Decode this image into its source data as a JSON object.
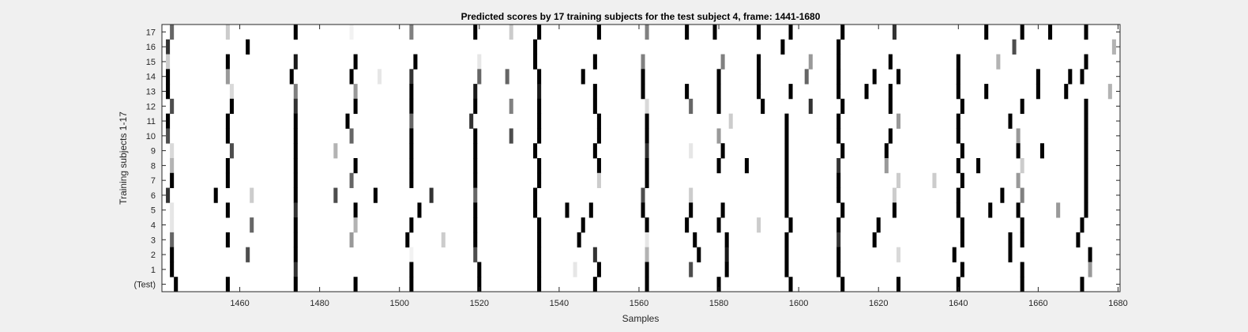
{
  "chart_data": {
    "type": "heatmap",
    "title": "Predicted scores by 17 training subjects for the test subject 4, frame: 1441-1680",
    "xlabel": "Samples",
    "ylabel": "Training subjects 1-17",
    "xlim": [
      1441,
      1680
    ],
    "x_ticks": [
      1460,
      1480,
      1500,
      1520,
      1540,
      1560,
      1580,
      1600,
      1620,
      1640,
      1660,
      1680
    ],
    "y_tick_labels": [
      "17",
      "16",
      "15",
      "14",
      "13",
      "12",
      "11",
      "10",
      "9",
      "8",
      "7",
      "6",
      "5",
      "4",
      "3",
      "2",
      "1",
      "(Test)"
    ],
    "colormap": "gray (white = 0, black = 1)",
    "grid": false,
    "rows": [
      {
        "label": "17",
        "marks": [
          [
            1443,
            0.6
          ],
          [
            1457,
            0.2
          ],
          [
            1474,
            1
          ],
          [
            1488,
            0.05
          ],
          [
            1503,
            0.5
          ],
          [
            1519,
            1
          ],
          [
            1528,
            0.2
          ],
          [
            1535,
            1
          ],
          [
            1550,
            1
          ],
          [
            1562,
            0.5
          ],
          [
            1572,
            1
          ],
          [
            1579,
            1
          ],
          [
            1590,
            1
          ],
          [
            1598,
            1
          ],
          [
            1611,
            1
          ],
          [
            1624,
            0.8
          ],
          [
            1647,
            1
          ],
          [
            1656,
            1
          ],
          [
            1663,
            1
          ],
          [
            1672,
            1
          ]
        ]
      },
      {
        "label": "16",
        "marks": [
          [
            1442,
            0.8
          ],
          [
            1462,
            1
          ],
          [
            1534,
            1
          ],
          [
            1596,
            1
          ],
          [
            1610,
            1
          ],
          [
            1654,
            0.7
          ],
          [
            1679,
            0.3
          ]
        ]
      },
      {
        "label": "15",
        "marks": [
          [
            1442,
            0.2
          ],
          [
            1457,
            1
          ],
          [
            1474,
            0.9
          ],
          [
            1489,
            1
          ],
          [
            1504,
            1
          ],
          [
            1520,
            0.1
          ],
          [
            1534,
            1
          ],
          [
            1549,
            1
          ],
          [
            1561,
            0.5
          ],
          [
            1581,
            0.5
          ],
          [
            1590,
            1
          ],
          [
            1603,
            0.4
          ],
          [
            1610,
            1
          ],
          [
            1623,
            1
          ],
          [
            1640,
            1
          ],
          [
            1650,
            0.3
          ],
          [
            1672,
            1
          ]
        ]
      },
      {
        "label": "14",
        "marks": [
          [
            1442,
            1
          ],
          [
            1457,
            0.4
          ],
          [
            1473,
            1
          ],
          [
            1488,
            1
          ],
          [
            1495,
            0.1
          ],
          [
            1503,
            0.8
          ],
          [
            1520,
            0.6
          ],
          [
            1527,
            0.6
          ],
          [
            1535,
            1
          ],
          [
            1546,
            1
          ],
          [
            1561,
            1
          ],
          [
            1580,
            1
          ],
          [
            1590,
            1
          ],
          [
            1602,
            0.6
          ],
          [
            1610,
            1
          ],
          [
            1619,
            1
          ],
          [
            1625,
            1
          ],
          [
            1640,
            1
          ],
          [
            1660,
            1
          ],
          [
            1668,
            1
          ],
          [
            1671,
            1
          ]
        ]
      },
      {
        "label": "13",
        "marks": [
          [
            1442,
            1
          ],
          [
            1458,
            0.15
          ],
          [
            1474,
            0.5
          ],
          [
            1489,
            0.4
          ],
          [
            1503,
            1
          ],
          [
            1519,
            0.9
          ],
          [
            1535,
            0.9
          ],
          [
            1549,
            1
          ],
          [
            1561,
            1
          ],
          [
            1572,
            1
          ],
          [
            1580,
            1
          ],
          [
            1590,
            1
          ],
          [
            1598,
            1
          ],
          [
            1610,
            1
          ],
          [
            1617,
            1
          ],
          [
            1623,
            1
          ],
          [
            1640,
            1
          ],
          [
            1647,
            1
          ],
          [
            1660,
            1
          ],
          [
            1667,
            1
          ],
          [
            1678,
            0.3
          ]
        ]
      },
      {
        "label": "12",
        "marks": [
          [
            1443,
            0.7
          ],
          [
            1458,
            1
          ],
          [
            1474,
            0.8
          ],
          [
            1489,
            1
          ],
          [
            1503,
            1
          ],
          [
            1519,
            1
          ],
          [
            1528,
            0.5
          ],
          [
            1535,
            1
          ],
          [
            1549,
            1
          ],
          [
            1562,
            0.15
          ],
          [
            1573,
            0.6
          ],
          [
            1580,
            1
          ],
          [
            1591,
            1
          ],
          [
            1603,
            0.8
          ],
          [
            1611,
            1
          ],
          [
            1623,
            1
          ],
          [
            1641,
            1
          ],
          [
            1656,
            1
          ],
          [
            1672,
            1
          ]
        ]
      },
      {
        "label": "11",
        "marks": [
          [
            1442,
            1
          ],
          [
            1457,
            1
          ],
          [
            1474,
            1
          ],
          [
            1487,
            1
          ],
          [
            1503,
            0.6
          ],
          [
            1518,
            0.8
          ],
          [
            1535,
            1
          ],
          [
            1550,
            1
          ],
          [
            1562,
            1
          ],
          [
            1583,
            0.2
          ],
          [
            1597,
            1
          ],
          [
            1610,
            1
          ],
          [
            1625,
            0.4
          ],
          [
            1640,
            1
          ],
          [
            1653,
            1
          ],
          [
            1672,
            1
          ]
        ]
      },
      {
        "label": "10",
        "marks": [
          [
            1442,
            0.7
          ],
          [
            1457,
            1
          ],
          [
            1474,
            1
          ],
          [
            1488,
            0.6
          ],
          [
            1503,
            1
          ],
          [
            1519,
            1
          ],
          [
            1528,
            0.7
          ],
          [
            1535,
            1
          ],
          [
            1550,
            1
          ],
          [
            1562,
            1
          ],
          [
            1580,
            0.4
          ],
          [
            1597,
            1
          ],
          [
            1610,
            1
          ],
          [
            1623,
            1
          ],
          [
            1640,
            1
          ],
          [
            1655,
            0.4
          ],
          [
            1672,
            1
          ]
        ]
      },
      {
        "label": "9",
        "marks": [
          [
            1443,
            0.15
          ],
          [
            1458,
            0.7
          ],
          [
            1474,
            1
          ],
          [
            1484,
            0.3
          ],
          [
            1503,
            1
          ],
          [
            1519,
            1
          ],
          [
            1534,
            1
          ],
          [
            1549,
            1
          ],
          [
            1562,
            0.8
          ],
          [
            1573,
            0.1
          ],
          [
            1581,
            1
          ],
          [
            1597,
            1
          ],
          [
            1611,
            1
          ],
          [
            1622,
            1
          ],
          [
            1641,
            1
          ],
          [
            1655,
            1
          ],
          [
            1661,
            1
          ],
          [
            1672,
            1
          ]
        ]
      },
      {
        "label": "8",
        "marks": [
          [
            1443,
            0.3
          ],
          [
            1457,
            1
          ],
          [
            1474,
            1
          ],
          [
            1489,
            1
          ],
          [
            1503,
            1
          ],
          [
            1519,
            1
          ],
          [
            1535,
            1
          ],
          [
            1550,
            1
          ],
          [
            1562,
            1
          ],
          [
            1580,
            1
          ],
          [
            1587,
            1
          ],
          [
            1597,
            1
          ],
          [
            1610,
            0.8
          ],
          [
            1622,
            0.4
          ],
          [
            1640,
            1
          ],
          [
            1645,
            1
          ],
          [
            1656,
            0.2
          ],
          [
            1672,
            1
          ]
        ]
      },
      {
        "label": "7",
        "marks": [
          [
            1443,
            1
          ],
          [
            1457,
            1
          ],
          [
            1474,
            1
          ],
          [
            1488,
            0.6
          ],
          [
            1503,
            1
          ],
          [
            1519,
            1
          ],
          [
            1535,
            1
          ],
          [
            1550,
            0.2
          ],
          [
            1562,
            1
          ],
          [
            1597,
            1
          ],
          [
            1610,
            1
          ],
          [
            1625,
            0.2
          ],
          [
            1634,
            0.2
          ],
          [
            1641,
            1
          ],
          [
            1655,
            0.4
          ],
          [
            1672,
            1
          ]
        ]
      },
      {
        "label": "6",
        "marks": [
          [
            1442,
            0.8
          ],
          [
            1454,
            1
          ],
          [
            1463,
            0.2
          ],
          [
            1474,
            1
          ],
          [
            1484,
            0.7
          ],
          [
            1494,
            1
          ],
          [
            1508,
            0.8
          ],
          [
            1519,
            0.6
          ],
          [
            1534,
            1
          ],
          [
            1561,
            0.7
          ],
          [
            1573,
            0.2
          ],
          [
            1597,
            1
          ],
          [
            1610,
            1
          ],
          [
            1624,
            0.2
          ],
          [
            1640,
            1
          ],
          [
            1651,
            1
          ],
          [
            1656,
            0.5
          ],
          [
            1672,
            1
          ]
        ]
      },
      {
        "label": "5",
        "marks": [
          [
            1443,
            0.1
          ],
          [
            1457,
            1
          ],
          [
            1474,
            0.8
          ],
          [
            1489,
            1
          ],
          [
            1505,
            1
          ],
          [
            1519,
            1
          ],
          [
            1534,
            1
          ],
          [
            1542,
            1
          ],
          [
            1548,
            1
          ],
          [
            1561,
            1
          ],
          [
            1573,
            1
          ],
          [
            1581,
            1
          ],
          [
            1597,
            1
          ],
          [
            1611,
            1
          ],
          [
            1624,
            1
          ],
          [
            1640,
            1
          ],
          [
            1648,
            1
          ],
          [
            1655,
            1
          ],
          [
            1665,
            0.4
          ],
          [
            1672,
            1
          ]
        ]
      },
      {
        "label": "4",
        "marks": [
          [
            1443,
            0.1
          ],
          [
            1463,
            0.6
          ],
          [
            1474,
            1
          ],
          [
            1489,
            0.3
          ],
          [
            1503,
            1
          ],
          [
            1519,
            1
          ],
          [
            1535,
            1
          ],
          [
            1546,
            1
          ],
          [
            1562,
            1
          ],
          [
            1572,
            1
          ],
          [
            1580,
            1
          ],
          [
            1590,
            0.2
          ],
          [
            1598,
            1
          ],
          [
            1610,
            1
          ],
          [
            1620,
            1
          ],
          [
            1641,
            1
          ],
          [
            1656,
            1
          ],
          [
            1671,
            1
          ]
        ]
      },
      {
        "label": "3",
        "marks": [
          [
            1443,
            0.6
          ],
          [
            1457,
            1
          ],
          [
            1474,
            1
          ],
          [
            1488,
            0.4
          ],
          [
            1502,
            1
          ],
          [
            1511,
            0.2
          ],
          [
            1519,
            1
          ],
          [
            1535,
            1
          ],
          [
            1545,
            1
          ],
          [
            1562,
            0.1
          ],
          [
            1574,
            1
          ],
          [
            1582,
            1
          ],
          [
            1597,
            1
          ],
          [
            1610,
            0.8
          ],
          [
            1619,
            1
          ],
          [
            1641,
            1
          ],
          [
            1653,
            1
          ],
          [
            1656,
            1
          ],
          [
            1670,
            1
          ]
        ]
      },
      {
        "label": "2",
        "marks": [
          [
            1443,
            1
          ],
          [
            1462,
            0.7
          ],
          [
            1474,
            1
          ],
          [
            1503,
            0.05
          ],
          [
            1519,
            0.7
          ],
          [
            1535,
            1
          ],
          [
            1549,
            0.8
          ],
          [
            1562,
            0.3
          ],
          [
            1575,
            1
          ],
          [
            1582,
            0.9
          ],
          [
            1597,
            1
          ],
          [
            1610,
            1
          ],
          [
            1625,
            0.15
          ],
          [
            1639,
            1
          ],
          [
            1653,
            1
          ],
          [
            1673,
            1
          ]
        ]
      },
      {
        "label": "1",
        "marks": [
          [
            1443,
            1
          ],
          [
            1474,
            0.8
          ],
          [
            1503,
            1
          ],
          [
            1520,
            1
          ],
          [
            1535,
            1
          ],
          [
            1544,
            0.1
          ],
          [
            1550,
            1
          ],
          [
            1562,
            1
          ],
          [
            1573,
            0.7
          ],
          [
            1582,
            1
          ],
          [
            1597,
            1
          ],
          [
            1610,
            1
          ],
          [
            1641,
            1
          ],
          [
            1656,
            1
          ],
          [
            1673,
            0.4
          ]
        ]
      },
      {
        "label": "(Test)",
        "marks": [
          [
            1444,
            1
          ],
          [
            1457,
            1
          ],
          [
            1474,
            1
          ],
          [
            1489,
            1
          ],
          [
            1503,
            1
          ],
          [
            1520,
            1
          ],
          [
            1535,
            1
          ],
          [
            1549,
            1
          ],
          [
            1562,
            1
          ],
          [
            1580,
            1
          ],
          [
            1598,
            1
          ],
          [
            1611,
            1
          ],
          [
            1625,
            1
          ],
          [
            1640,
            1
          ],
          [
            1656,
            1
          ],
          [
            1671,
            1
          ]
        ]
      }
    ]
  }
}
